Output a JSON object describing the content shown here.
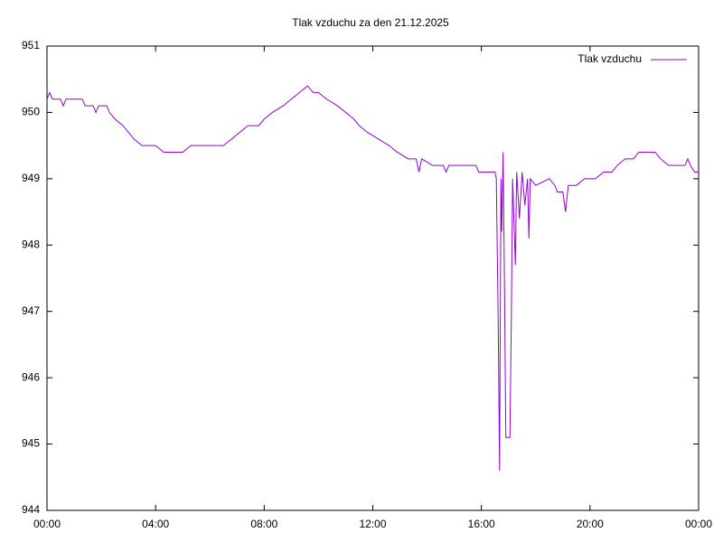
{
  "chart_data": {
    "type": "line",
    "title": "Tlak vzduchu za den 21.12.2025",
    "x": [
      0,
      0.1,
      0.2,
      0.5,
      0.6,
      0.7,
      1.0,
      1.3,
      1.4,
      1.7,
      1.8,
      1.9,
      2.2,
      2.3,
      2.5,
      2.8,
      3.0,
      3.2,
      3.5,
      3.8,
      4.0,
      4.3,
      5.0,
      5.3,
      6.0,
      6.5,
      6.8,
      7.1,
      7.4,
      7.8,
      8.0,
      8.3,
      8.7,
      9.0,
      9.3,
      9.6,
      9.8,
      10.0,
      10.3,
      10.7,
      11.0,
      11.3,
      11.5,
      11.8,
      12.2,
      12.6,
      12.9,
      13.3,
      13.6,
      13.7,
      13.8,
      14.2,
      14.6,
      14.7,
      14.8,
      15.5,
      15.8,
      15.9,
      16.5,
      16.55,
      16.62,
      16.67,
      16.72,
      16.75,
      16.8,
      16.85,
      16.9,
      17.05,
      17.1,
      17.15,
      17.25,
      17.3,
      17.4,
      17.5,
      17.6,
      17.7,
      17.75,
      17.8,
      18.0,
      18.5,
      18.7,
      18.8,
      19.0,
      19.1,
      19.2,
      19.5,
      19.8,
      20.2,
      20.5,
      20.8,
      21.0,
      21.3,
      21.6,
      21.8,
      22.4,
      22.6,
      22.9,
      23.5,
      23.6,
      23.7,
      23.85,
      24.0
    ],
    "series": [
      {
        "name": "Tlak vzduchu",
        "color": "#9400d3",
        "values": [
          950.2,
          950.3,
          950.2,
          950.2,
          950.1,
          950.2,
          950.2,
          950.2,
          950.1,
          950.1,
          950.0,
          950.1,
          950.1,
          950.0,
          949.9,
          949.8,
          949.7,
          949.6,
          949.5,
          949.5,
          949.5,
          949.4,
          949.4,
          949.5,
          949.5,
          949.5,
          949.6,
          949.7,
          949.8,
          949.8,
          949.9,
          950.0,
          950.1,
          950.2,
          950.3,
          950.4,
          950.3,
          950.3,
          950.2,
          950.1,
          950.0,
          949.9,
          949.8,
          949.7,
          949.6,
          949.5,
          949.4,
          949.3,
          949.3,
          949.1,
          949.3,
          949.2,
          949.2,
          949.1,
          949.2,
          949.2,
          949.2,
          949.1,
          949.1,
          949.0,
          946.8,
          944.6,
          949.0,
          948.2,
          949.4,
          947.4,
          945.1,
          945.1,
          946.8,
          949.0,
          947.7,
          949.1,
          948.4,
          949.1,
          948.6,
          949.0,
          948.1,
          949.0,
          948.9,
          949.0,
          948.9,
          948.8,
          948.8,
          948.5,
          948.9,
          948.9,
          949.0,
          949.0,
          949.1,
          949.1,
          949.2,
          949.3,
          949.3,
          949.4,
          949.4,
          949.3,
          949.2,
          949.2,
          949.3,
          949.2,
          949.1,
          949.1
        ]
      }
    ],
    "xlim": [
      0,
      24
    ],
    "xticks": [
      {
        "value": 0,
        "label": "00:00"
      },
      {
        "value": 4,
        "label": "04:00"
      },
      {
        "value": 8,
        "label": "08:00"
      },
      {
        "value": 12,
        "label": "12:00"
      },
      {
        "value": 16,
        "label": "16:00"
      },
      {
        "value": 20,
        "label": "20:00"
      },
      {
        "value": 24,
        "label": "00:00"
      }
    ],
    "ylim": [
      944,
      951
    ],
    "yticks": [
      944,
      945,
      946,
      947,
      948,
      949,
      950,
      951
    ],
    "legend": "top-right"
  }
}
